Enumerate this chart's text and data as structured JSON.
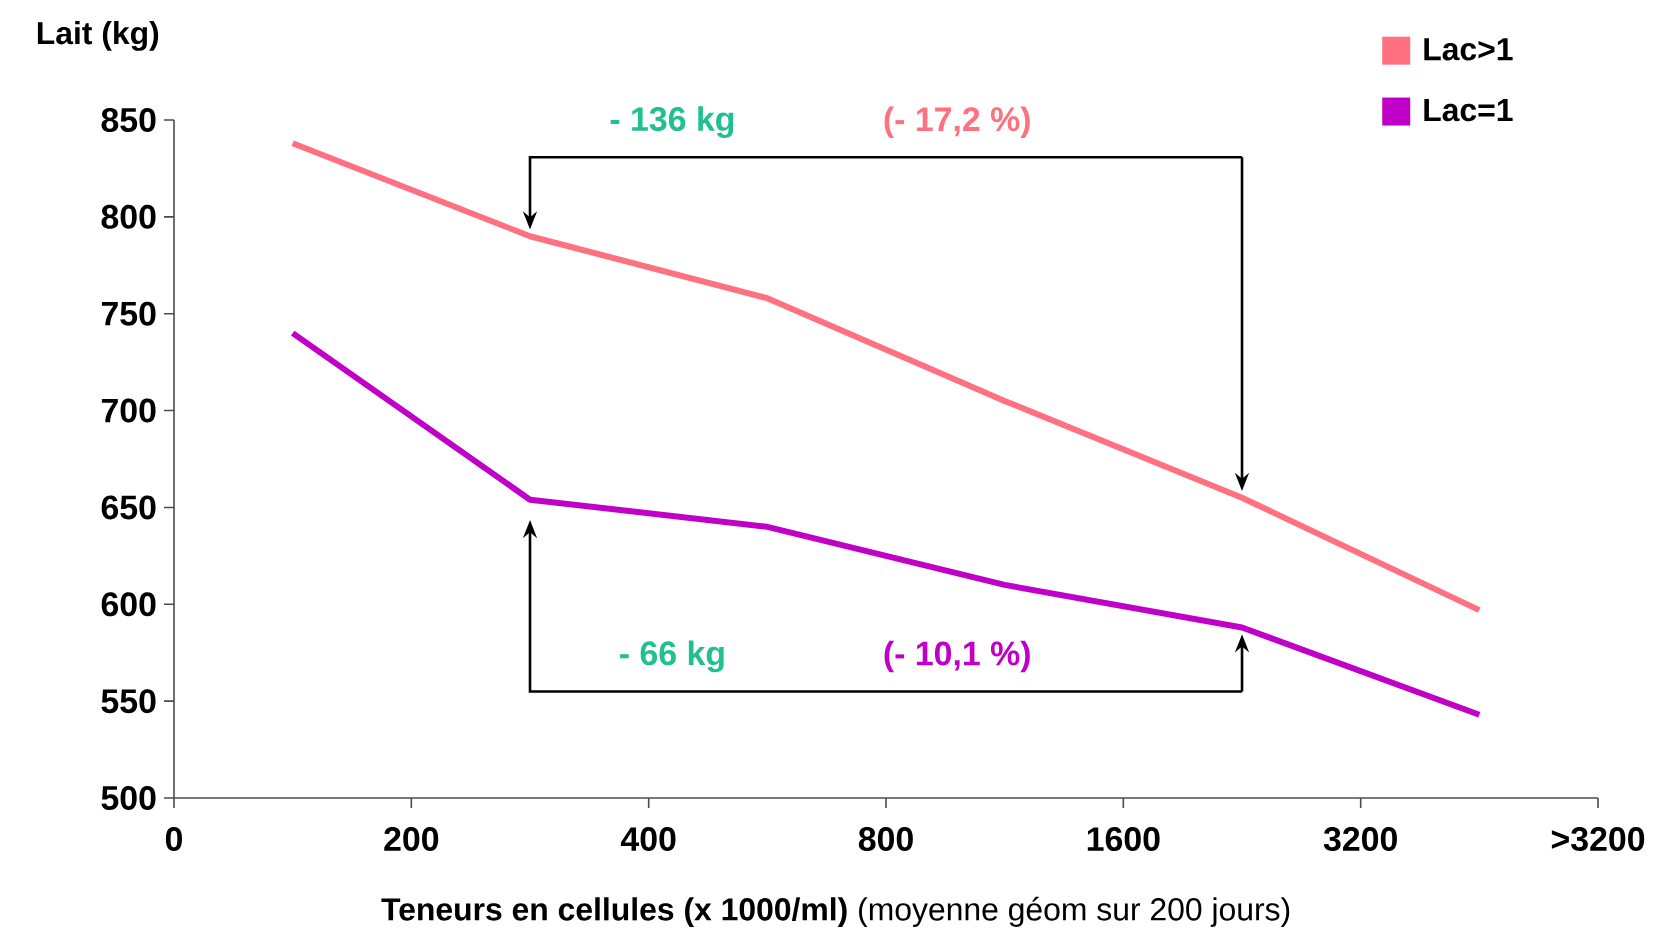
{
  "chart_data": {
    "type": "line",
    "ylabel": "Lait (kg)",
    "xlabel": "**Teneurs en cellules (x 1000/ml)** (moyenne géom sur 200 jours)",
    "categories": [
      "0",
      null,
      "200",
      null,
      "400",
      null,
      "800",
      null,
      "1600",
      null,
      "3200",
      null,
      ">3200"
    ],
    "ylim": [
      500,
      850
    ],
    "yticks": [
      500,
      550,
      600,
      650,
      700,
      750,
      800,
      850
    ],
    "series": [
      {
        "name": "Lac>1",
        "color": "#ff7080",
        "values": [
          null,
          838,
          null,
          790,
          null,
          758,
          null,
          705,
          null,
          655,
          null,
          597,
          null
        ]
      },
      {
        "name": "Lac=1",
        "color": "#c000c8",
        "values": [
          null,
          740,
          null,
          654,
          null,
          640,
          null,
          610,
          null,
          588,
          null,
          543,
          null
        ]
      }
    ],
    "annotations": [
      "- 136 kg",
      "(- 17,2 %)",
      "- 66 kg",
      "(- 10,1 %)"
    ],
    "legend": "top right",
    "marker": "none",
    "line_style": "solid"
  }
}
